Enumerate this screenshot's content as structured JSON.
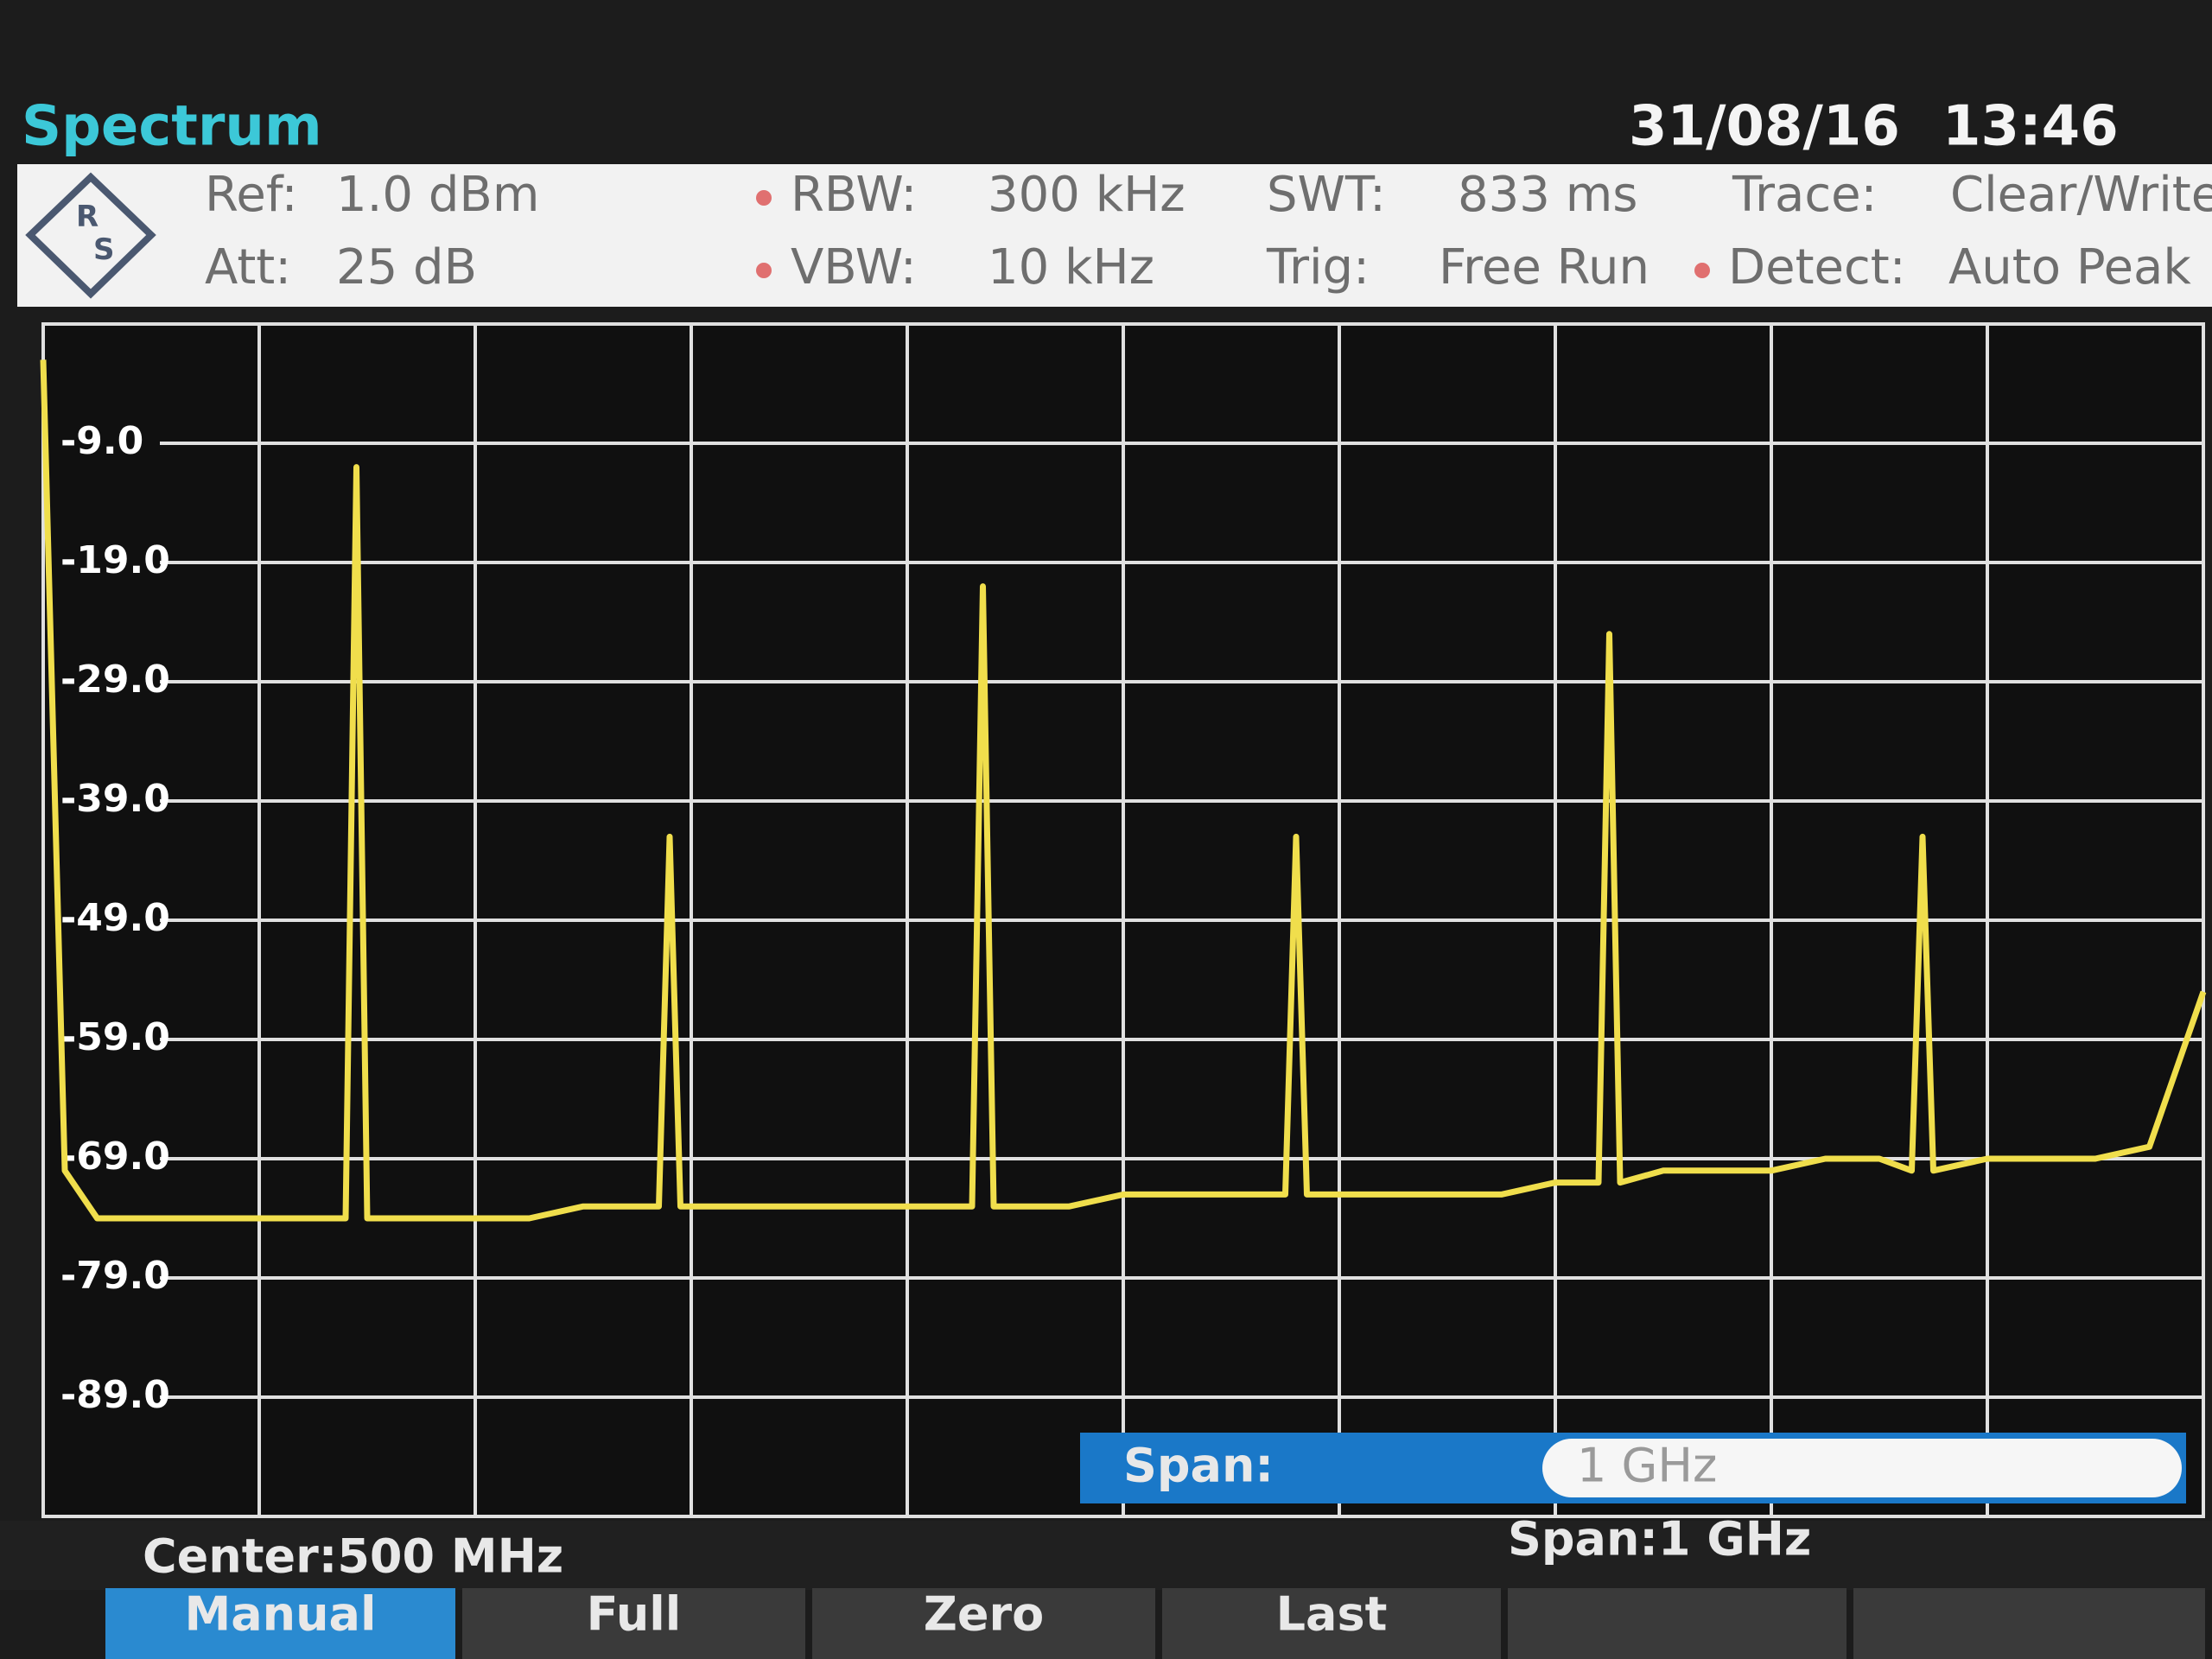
{
  "header": {
    "title": "Spectrum",
    "date": "31/08/16",
    "time": "13:46"
  },
  "settings": {
    "ref_label": "Ref:",
    "ref": "1.0 dBm",
    "att_label": "Att:",
    "att": "25 dB",
    "rbw_label": "RBW:",
    "rbw": "300 kHz",
    "vbw_label": "VBW:",
    "vbw": "10 kHz",
    "swt_label": "SWT:",
    "swt": "833 ms",
    "trig_label": "Trig:",
    "trig": "Free Run",
    "trace_label": "Trace:",
    "trace": "Clear/Write",
    "detect_label": "Detect:",
    "detect": "Auto Peak"
  },
  "chart_data": {
    "type": "line",
    "color": "#f0de4c",
    "grid": true,
    "x": [
      0,
      10,
      25,
      50,
      75,
      100,
      125,
      140,
      145,
      150,
      175,
      200,
      225,
      250,
      275,
      285,
      290,
      295,
      325,
      350,
      375,
      400,
      425,
      430,
      435,
      440,
      475,
      500,
      525,
      550,
      575,
      580,
      585,
      620,
      650,
      675,
      700,
      720,
      725,
      730,
      750,
      775,
      800,
      825,
      850,
      865,
      870,
      875,
      900,
      925,
      950,
      975,
      1000
    ],
    "values": [
      -2,
      -70,
      -74,
      -74,
      -74,
      -74,
      -74,
      -74,
      -11,
      -74,
      -74,
      -74,
      -74,
      -73,
      -73,
      -73,
      -42,
      -73,
      -73,
      -73,
      -73,
      -73,
      -73,
      -73,
      -21,
      -73,
      -73,
      -72,
      -72,
      -72,
      -72,
      -42,
      -72,
      -72,
      -72,
      -72,
      -71,
      -71,
      -25,
      -71,
      -70,
      -70,
      -70,
      -69,
      -69,
      -70,
      -42,
      -70,
      -69,
      -69,
      -69,
      -68,
      -55
    ],
    "xlim": [
      0,
      1000
    ],
    "ylim": [
      -99,
      1
    ],
    "yticks": [
      {
        "value": -9,
        "label": "-9.0"
      },
      {
        "value": -19,
        "label": "-19.0"
      },
      {
        "value": -29,
        "label": "-29.0"
      },
      {
        "value": -39,
        "label": "-39.0"
      },
      {
        "value": -49,
        "label": "-49.0"
      },
      {
        "value": -59,
        "label": "-59.0"
      },
      {
        "value": -69,
        "label": "-69.0"
      },
      {
        "value": -79,
        "label": "-79.0"
      },
      {
        "value": -89,
        "label": "-89.0"
      }
    ],
    "span_label": "Span:",
    "span_value": "1 GHz",
    "center": "Center:500 MHz",
    "span": "Span:1 GHz"
  },
  "softkeys": [
    "Manual",
    "Full",
    "Zero",
    "Last"
  ]
}
